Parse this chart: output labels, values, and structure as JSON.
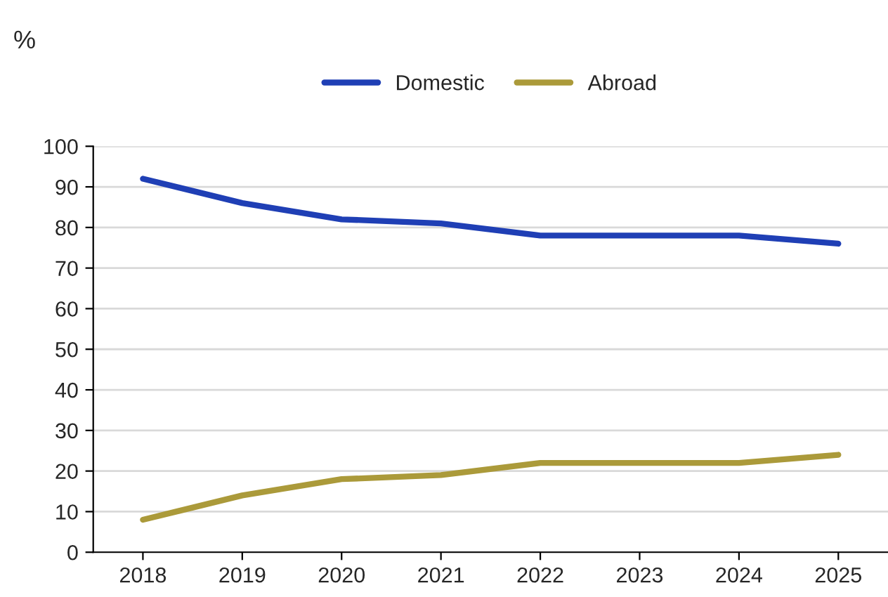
{
  "chart_data": {
    "type": "line",
    "ylabel": "%",
    "categories": [
      "2018",
      "2019",
      "2020",
      "2021",
      "2022",
      "2023",
      "2024",
      "2025"
    ],
    "series": [
      {
        "name": "Domestic",
        "color": "#1f3fb5",
        "values": [
          92,
          86,
          82,
          81,
          78,
          78,
          78,
          76
        ]
      },
      {
        "name": "Abroad",
        "color": "#ab9a3a",
        "values": [
          8,
          14,
          18,
          19,
          22,
          22,
          22,
          24
        ]
      }
    ],
    "ylim": [
      0,
      100
    ],
    "yticks": [
      0,
      10,
      20,
      30,
      40,
      50,
      60,
      70,
      80,
      90,
      100
    ],
    "grid": "y",
    "legend": "top",
    "marker": "none",
    "line_style": "solid"
  }
}
